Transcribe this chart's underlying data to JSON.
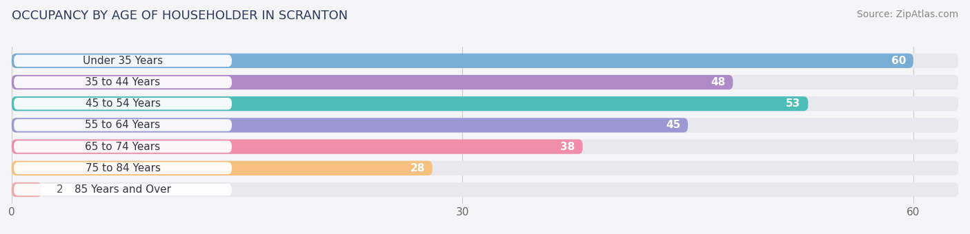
{
  "title": "OCCUPANCY BY AGE OF HOUSEHOLDER IN SCRANTON",
  "source": "Source: ZipAtlas.com",
  "categories": [
    "Under 35 Years",
    "35 to 44 Years",
    "45 to 54 Years",
    "55 to 64 Years",
    "65 to 74 Years",
    "75 to 84 Years",
    "85 Years and Over"
  ],
  "values": [
    60,
    48,
    53,
    45,
    38,
    28,
    2
  ],
  "bar_colors": [
    "#7aadd4",
    "#b089c8",
    "#4dbdb8",
    "#9b99d4",
    "#f08daa",
    "#f5c080",
    "#f0aaaa"
  ],
  "bar_bg_color": "#e8e8ee",
  "xlim_max": 63,
  "xticks": [
    0,
    30,
    60
  ],
  "title_fontsize": 13,
  "source_fontsize": 10,
  "label_fontsize": 11,
  "value_fontsize": 11,
  "bar_height": 0.68,
  "bg_color": "#f5f5f7",
  "label_bg_color": "#ffffff",
  "label_text_color": "#333344",
  "value_color_inside": "#ffffff",
  "value_color_outside": "#555555",
  "grid_color": "#cccccc",
  "tick_color": "#666666"
}
